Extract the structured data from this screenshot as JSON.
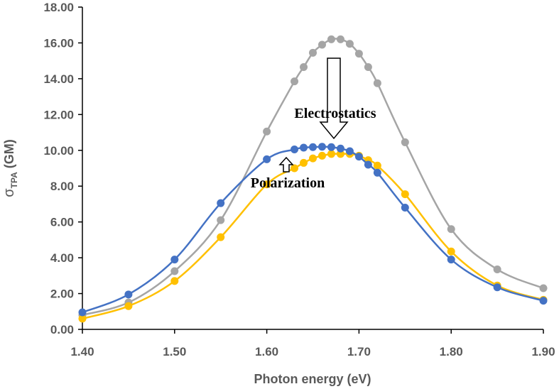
{
  "chart_data": {
    "type": "line",
    "title": "",
    "xlabel": "Photon energy (eV)",
    "ylabel": {
      "symbol": "σ",
      "subscript": "TPA",
      "unit": " (GM)"
    },
    "xlim": [
      1.4,
      1.9
    ],
    "ylim": [
      0,
      18
    ],
    "x_ticks": [
      "1.40",
      "1.50",
      "1.60",
      "1.70",
      "1.80",
      "1.90"
    ],
    "y_ticks": [
      "0.00",
      "2.00",
      "4.00",
      "6.00",
      "8.00",
      "10.00",
      "12.00",
      "14.00",
      "16.00",
      "18.00"
    ],
    "grid": false,
    "series": [
      {
        "name": "gray",
        "color": "#a5a5a5",
        "x": [
          1.4,
          1.45,
          1.5,
          1.55,
          1.6,
          1.63,
          1.64,
          1.65,
          1.66,
          1.67,
          1.68,
          1.69,
          1.7,
          1.71,
          1.72,
          1.75,
          1.8,
          1.85,
          1.9
        ],
        "y": [
          0.8,
          1.5,
          3.25,
          6.1,
          11.05,
          13.85,
          14.65,
          15.45,
          15.9,
          16.2,
          16.2,
          15.95,
          15.4,
          14.65,
          13.75,
          10.45,
          5.6,
          3.35,
          2.3
        ]
      },
      {
        "name": "yellow",
        "color": "#ffc000",
        "x": [
          1.4,
          1.45,
          1.5,
          1.55,
          1.6,
          1.63,
          1.64,
          1.65,
          1.66,
          1.67,
          1.68,
          1.69,
          1.7,
          1.71,
          1.72,
          1.75,
          1.8,
          1.85,
          1.9
        ],
        "y": [
          0.6,
          1.3,
          2.7,
          5.15,
          8.1,
          9.0,
          9.3,
          9.55,
          9.7,
          9.8,
          9.8,
          9.8,
          9.7,
          9.45,
          9.15,
          7.55,
          4.35,
          2.45,
          1.65
        ]
      },
      {
        "name": "blue",
        "color": "#4472c4",
        "x": [
          1.4,
          1.45,
          1.5,
          1.55,
          1.6,
          1.63,
          1.64,
          1.65,
          1.66,
          1.67,
          1.68,
          1.69,
          1.7,
          1.71,
          1.72,
          1.75,
          1.8,
          1.85,
          1.9
        ],
        "y": [
          0.95,
          1.95,
          3.9,
          7.05,
          9.5,
          10.05,
          10.15,
          10.18,
          10.2,
          10.18,
          10.1,
          9.95,
          9.65,
          9.2,
          8.75,
          6.8,
          3.9,
          2.35,
          1.6
        ]
      }
    ],
    "annotations": [
      {
        "text": "Electrostatics",
        "arrow": "down"
      },
      {
        "text": "Polarization",
        "arrow": "up"
      }
    ]
  }
}
